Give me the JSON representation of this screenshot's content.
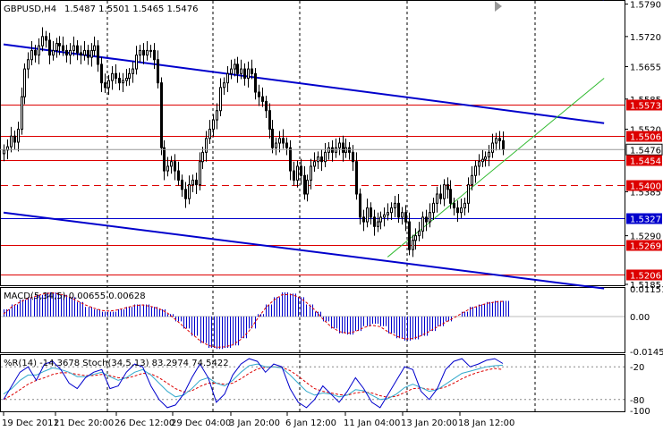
{
  "header": {
    "symbol": "GBPUSD,H4",
    "ohlc": "1.5487 1.5501 1.5465 1.5476"
  },
  "colors": {
    "background": "#ffffff",
    "candle": "#000000",
    "channel": "#0000cc",
    "support_trend": "#33bb33",
    "hline": "#dd0000",
    "macd_hist": "#0000cc",
    "macd_signal": "#dd0000",
    "wpr": "#0000cc",
    "stoch_main": "#33aacc",
    "stoch_signal": "#dd0000"
  },
  "chart_data": [
    {
      "type": "candlestick",
      "title": "GBPUSD,H4",
      "ylim": [
        1.5185,
        1.5795
      ],
      "y_ticks": [
        "1.5790",
        "1.5720",
        "1.5655",
        "1.5585",
        "1.5520",
        "1.5385",
        "1.5290",
        "1.5185"
      ],
      "x_ticks": [
        "19 Dec 2011",
        "21 Dec 20:00",
        "26 Dec 12:00",
        "29 Dec 04:00",
        "3 Jan 20:00",
        "6 Jan 12:00",
        "11 Jan 04:00",
        "13 Jan 20:00",
        "18 Jan 12:00"
      ],
      "price_levels": [
        {
          "value": 1.5573,
          "label": "1.5573",
          "style": "solid",
          "color": "#dd0000"
        },
        {
          "value": 1.5506,
          "label": "1.5506",
          "style": "solid",
          "color": "#dd0000"
        },
        {
          "value": 1.5454,
          "label": "1.5454",
          "style": "solid",
          "color": "#dd0000"
        },
        {
          "value": 1.54,
          "label": "1.5400",
          "style": "dashed",
          "color": "#dd0000"
        },
        {
          "value": 1.5327,
          "label": "1.5327",
          "style": "solid",
          "color": "#0000cc"
        },
        {
          "value": 1.5269,
          "label": "1.5269",
          "style": "solid",
          "color": "#dd0000"
        },
        {
          "value": 1.5206,
          "label": "1.5206",
          "style": "solid",
          "color": "#dd0000"
        }
      ],
      "current_price": {
        "value": 1.5476,
        "label": "1.5476"
      },
      "trendlines": [
        {
          "name": "upper channel",
          "color": "#0000cc",
          "points": [
            [
              0,
              1.5703
            ],
            [
              172,
              1.5533
            ]
          ]
        },
        {
          "name": "lower channel",
          "color": "#0000cc",
          "points": [
            [
              0,
              1.534
            ],
            [
              172,
              1.5176
            ]
          ]
        },
        {
          "name": "channel top",
          "color": "#0000cc",
          "points": [
            [
              142,
              1.584
            ],
            [
              172,
              1.58
            ]
          ]
        },
        {
          "name": "support trend",
          "color": "#33bb33",
          "points": [
            [
              110,
              1.5244
            ],
            [
              172,
              1.563
            ]
          ]
        }
      ],
      "closes": [
        1.5475,
        1.5482,
        1.5505,
        1.5492,
        1.552,
        1.559,
        1.565,
        1.567,
        1.569,
        1.568,
        1.57,
        1.572,
        1.5712,
        1.568,
        1.569,
        1.5705,
        1.57,
        1.569,
        1.568,
        1.569,
        1.57,
        1.5685,
        1.568,
        1.569,
        1.5675,
        1.569,
        1.57,
        1.566,
        1.562,
        1.561,
        1.5625,
        1.564,
        1.563,
        1.562,
        1.5625,
        1.563,
        1.564,
        1.565,
        1.568,
        1.569,
        1.568,
        1.569,
        1.569,
        1.567,
        1.562,
        1.548,
        1.543,
        1.544,
        1.545,
        1.543,
        1.541,
        1.539,
        1.537,
        1.54,
        1.541,
        1.54,
        1.545,
        1.547,
        1.55,
        1.552,
        1.554,
        1.556,
        1.561,
        1.562,
        1.564,
        1.565,
        1.566,
        1.564,
        1.565,
        1.563,
        1.565,
        1.564,
        1.56,
        1.559,
        1.558,
        1.556,
        1.552,
        1.548,
        1.549,
        1.55,
        1.549,
        1.548,
        1.543,
        1.541,
        1.544,
        1.542,
        1.538,
        1.541,
        1.544,
        1.545,
        1.546,
        1.545,
        1.547,
        1.548,
        1.547,
        1.548,
        1.549,
        1.547,
        1.548,
        1.547,
        1.545,
        1.538,
        1.533,
        1.532,
        1.535,
        1.533,
        1.531,
        1.532,
        1.533,
        1.5335,
        1.534,
        1.535,
        1.536,
        1.533,
        1.534,
        1.532,
        1.526,
        1.528,
        1.529,
        1.53,
        1.533,
        1.532,
        1.534,
        1.536,
        1.538,
        1.537,
        1.54,
        1.539,
        1.536,
        1.535,
        1.534,
        1.535,
        1.536,
        1.54,
        1.542,
        1.544,
        1.545,
        1.5455,
        1.546,
        1.547,
        1.549,
        1.55,
        1.5495,
        1.5476
      ]
    },
    {
      "type": "bar",
      "title": "MACD(5,34,5) 0.00655 0.00628",
      "ylim": [
        -0.0145,
        0.0115
      ],
      "y_ticks": [
        "0.01151",
        "0.00",
        "-0.01451"
      ],
      "series": [
        {
          "name": "histogram",
          "values": [
            0.003,
            0.005,
            0.007,
            0.008,
            0.009,
            0.01,
            0.01,
            0.009,
            0.008,
            0.006,
            0.004,
            0.003,
            0.002,
            0.002,
            0.003,
            0.004,
            0.005,
            0.005,
            0.004,
            0.003,
            0.001,
            -0.002,
            -0.005,
            -0.008,
            -0.011,
            -0.013,
            -0.0135,
            -0.013,
            -0.012,
            -0.009,
            -0.005,
            0.001,
            0.005,
            0.008,
            0.01,
            0.0095,
            0.008,
            0.005,
            0.002,
            -0.002,
            -0.005,
            -0.007,
            -0.0075,
            -0.006,
            -0.004,
            -0.003,
            -0.004,
            -0.007,
            -0.009,
            -0.01,
            -0.0095,
            -0.008,
            -0.006,
            -0.004,
            -0.002,
            0.0,
            0.002,
            0.004,
            0.005,
            0.006,
            0.0065,
            0.0065
          ]
        },
        {
          "name": "signal",
          "values": [
            0.001,
            0.004,
            0.006,
            0.0075,
            0.0085,
            0.0095,
            0.0098,
            0.0092,
            0.0082,
            0.0065,
            0.0048,
            0.0035,
            0.0025,
            0.0022,
            0.0028,
            0.0037,
            0.0045,
            0.0048,
            0.0042,
            0.0033,
            0.0015,
            -0.0012,
            -0.0042,
            -0.0072,
            -0.01,
            -0.012,
            -0.0128,
            -0.0126,
            -0.0118,
            -0.0095,
            -0.006,
            -0.001,
            0.0035,
            0.0068,
            0.009,
            0.0092,
            0.0082,
            0.0058,
            0.0028,
            -0.001,
            -0.0042,
            -0.0062,
            -0.007,
            -0.0062,
            -0.0046,
            -0.0036,
            -0.0042,
            -0.0064,
            -0.0082,
            -0.0093,
            -0.0092,
            -0.008,
            -0.0062,
            -0.0043,
            -0.0024,
            -0.0006,
            0.0014,
            0.0032,
            0.0044,
            0.0054,
            0.006,
            0.0063
          ]
        }
      ]
    },
    {
      "type": "line",
      "title": "%R(14) -14.3678  Stoch(34,5,13) 83.2974 74.5422",
      "ylim": [
        -100,
        0
      ],
      "y_ticks": [
        "-20",
        "-80",
        "-100"
      ],
      "series": [
        {
          "name": "%R(14)",
          "values": [
            -80,
            -55,
            -30,
            -20,
            -45,
            -15,
            -10,
            -25,
            -50,
            -60,
            -40,
            -30,
            -25,
            -60,
            -55,
            -30,
            -15,
            -20,
            -55,
            -80,
            -95,
            -90,
            -70,
            -40,
            -15,
            -40,
            -85,
            -70,
            -35,
            -15,
            -5,
            -10,
            -30,
            -15,
            -20,
            -60,
            -85,
            -95,
            -80,
            -55,
            -70,
            -85,
            -65,
            -40,
            -60,
            -85,
            -95,
            -70,
            -45,
            -20,
            -25,
            -65,
            -80,
            -60,
            -25,
            -10,
            -5,
            -20,
            -15,
            -8,
            -5,
            -14
          ]
        },
        {
          "name": "Stoch main",
          "values": [
            -70,
            -60,
            -45,
            -35,
            -35,
            -28,
            -22,
            -25,
            -30,
            -38,
            -38,
            -34,
            -30,
            -38,
            -45,
            -40,
            -30,
            -25,
            -35,
            -50,
            -65,
            -75,
            -72,
            -60,
            -45,
            -40,
            -50,
            -55,
            -45,
            -30,
            -18,
            -15,
            -20,
            -20,
            -22,
            -35,
            -50,
            -65,
            -72,
            -68,
            -70,
            -75,
            -72,
            -62,
            -64,
            -72,
            -80,
            -78,
            -70,
            -58,
            -52,
            -58,
            -65,
            -62,
            -52,
            -42,
            -32,
            -28,
            -24,
            -20,
            -18,
            -17
          ]
        },
        {
          "name": "Stoch signal",
          "values": [
            -80,
            -72,
            -62,
            -52,
            -45,
            -40,
            -34,
            -31,
            -31,
            -34,
            -36,
            -36,
            -34,
            -36,
            -40,
            -41,
            -37,
            -32,
            -33,
            -40,
            -50,
            -60,
            -66,
            -64,
            -56,
            -50,
            -50,
            -52,
            -50,
            -42,
            -32,
            -24,
            -21,
            -20,
            -21,
            -27,
            -37,
            -49,
            -60,
            -65,
            -68,
            -71,
            -72,
            -68,
            -66,
            -68,
            -73,
            -76,
            -74,
            -67,
            -60,
            -59,
            -61,
            -61,
            -57,
            -50,
            -42,
            -35,
            -30,
            -26,
            -23,
            -25
          ]
        }
      ]
    }
  ]
}
